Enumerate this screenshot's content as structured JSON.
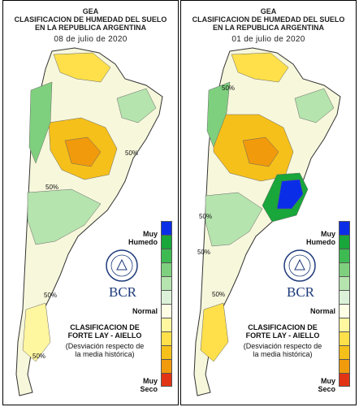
{
  "panels": [
    {
      "header_line1": "GEA",
      "header_line2": "CLASIFICACION DE HUMEDAD DEL SUELO",
      "header_line3": "EN LA REPUBLICA ARGENTINA",
      "date": "08 de julio de 2020",
      "contour_labels": [
        "50%",
        "50%",
        "50%",
        "50%"
      ],
      "legend_top": "Muy\nHumedo",
      "legend_normal": "Normal",
      "legend_bottom": "Muy\nSeco",
      "classification_title": "CLASIFICACION DE\nFORTE LAY - AIELLO",
      "classification_note": "(Desviación respecto de\nla media histórica)",
      "logo_text": "BCR"
    },
    {
      "header_line1": "GEA",
      "header_line2": "CLASIFICACION DE HUMEDAD DEL SUELO",
      "header_line3": "EN LA REPUBLICA ARGENTINA",
      "date": "01 de julio de 2020",
      "contour_labels": [
        "50%",
        "50%",
        "50%",
        "50%"
      ],
      "legend_top": "Muy\nHumedo",
      "legend_normal": "Normal",
      "legend_bottom": "Muy\nSeco",
      "classification_title": "CLASIFICACION DE\nFORTE LAY - AIELLO",
      "classification_note": "(Desviación respecto de\nla media histórica)",
      "logo_text": "BCR"
    }
  ],
  "legend_colors": [
    "#0a2ee8",
    "#19a63a",
    "#3dbb52",
    "#7fd07e",
    "#b5e4ae",
    "#dcf2d8",
    "#ffffe6",
    "#fff6a0",
    "#ffe04a",
    "#f6c01a",
    "#f09a0c",
    "#e23414"
  ],
  "palette": {
    "wet_dark": "#1f8f2f",
    "wet": "#7fd07e",
    "wet_light": "#c6ebc1",
    "normal": "#f7f7dc",
    "dry_light": "#fff2a0",
    "dry": "#f6c01a",
    "dry_dark": "#f09a0c",
    "very_wet": "#0a2ee8",
    "brand_blue": "#1d3a7a"
  }
}
